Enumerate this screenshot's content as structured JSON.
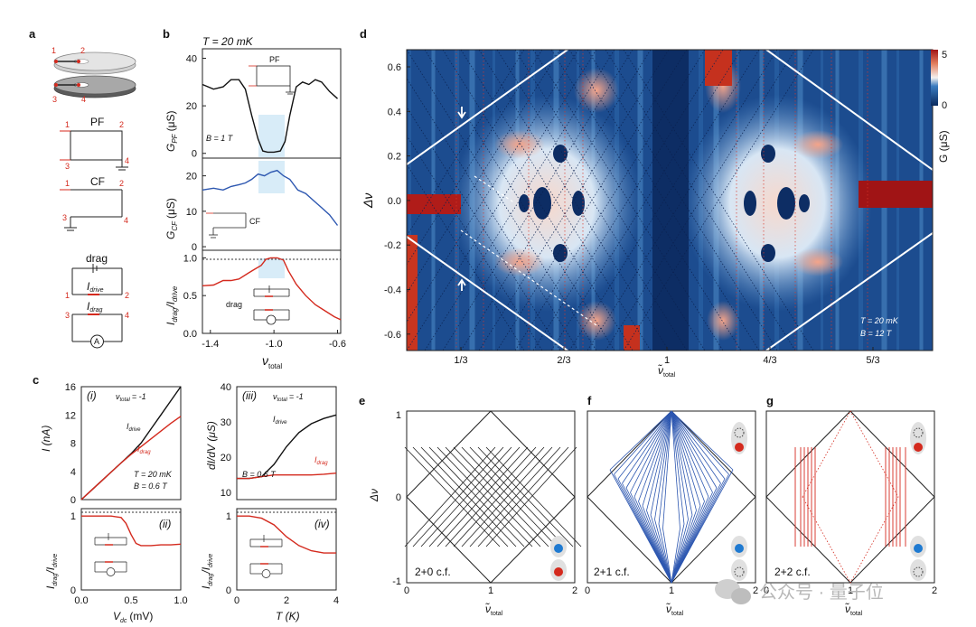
{
  "panels": {
    "a": "a",
    "b": "b",
    "c": "c",
    "d": "d",
    "e": "e",
    "f": "f",
    "g": "g"
  },
  "panel_a": {
    "disk_labels": [
      "1",
      "2",
      "3",
      "4"
    ],
    "pf_label": "PF",
    "cf_label": "CF",
    "drag_label": "drag",
    "i_drive": "I",
    "drive_sub": "drive",
    "i_drag": "I",
    "drag_sub": "drag",
    "ammeter": "A"
  },
  "panel_b": {
    "temp": "T = 20 mK",
    "field": "B = 1 T",
    "pf": "PF",
    "cf": "CF",
    "drag": "drag",
    "ylabel_top": "G",
    "ylabel_top_sub": "PF",
    "ylabel_top_unit": "(μS)",
    "ylabel_mid": "G",
    "ylabel_mid_sub": "CF",
    "ylabel_mid_unit": "(μS)",
    "ylabel_bot": "I",
    "ylabel_bot_sub": "drag",
    "ylabel_bot_2": "/I",
    "ylabel_bot_sub2": "drive",
    "xlabel": "ν",
    "xlabel_sub": "total",
    "yticks_top": [
      "40",
      "20",
      "0"
    ],
    "yticks_mid": [
      "20",
      "10",
      "0"
    ],
    "yticks_bot": [
      "1.0",
      "0.5",
      "0.0"
    ],
    "xticks": [
      "-1.4",
      "-1.0",
      "-0.6"
    ]
  },
  "panel_c": {
    "i": "(i)",
    "ii": "(ii)",
    "iii": "(iii)",
    "iv": "(iv)",
    "nu_i": "ν",
    "nu_sub": "total",
    "nu_val": "= -1",
    "idrive": "I",
    "idrive_sub": "drive",
    "idrag": "I",
    "idrag_sub": "drag",
    "temp": "T = 20 mK",
    "field_i": "B = 0.6 T",
    "field_iii": "B = 0.6 T",
    "ylabel_i": "I (nA)",
    "ylabel_iii": "dI/dV (μS)",
    "ylabel_ratio": "I",
    "xlabel_left": "V",
    "xlabel_left_sub": "dc",
    "xlabel_left_unit": "(mV)",
    "xlabel_right": "T (K)",
    "yticks_i": [
      "16",
      "12",
      "8",
      "4",
      "0"
    ],
    "yticks_iii": [
      "40",
      "30",
      "20",
      "10"
    ],
    "yticks_ratio": [
      "1",
      "0"
    ],
    "xticks_left": [
      "0.0",
      "0.5",
      "1.0"
    ],
    "xticks_right": [
      "0",
      "2",
      "4"
    ]
  },
  "panel_d": {
    "ylabel": "Δν",
    "yticks": [
      "0.6",
      "0.4",
      "0.2",
      "0.0",
      "-0.2",
      "-0.4",
      "-0.6"
    ],
    "xticks": [
      "1/3",
      "2/3",
      "1",
      "4/3",
      "5/3"
    ],
    "xlabel": "ν̃",
    "xlabel_sub": "total",
    "cbar_ticks": [
      "5",
      "0"
    ],
    "cbar_label": "G (μS)",
    "temp": "T = 20 mK",
    "field": "B = 12 T"
  },
  "panel_efg": {
    "ylabel": "Δν",
    "yticks": [
      "1",
      "0",
      "-1"
    ],
    "xticks": [
      "0",
      "1",
      "2"
    ],
    "xlabel": "ν̃",
    "xlabel_sub": "total",
    "label_e": "2+0  c.f.",
    "label_f": "2+1  c.f.",
    "label_g": "2+2  c.f."
  },
  "watermark": "公众号 · 量子位",
  "colors": {
    "red": "#d42a1e",
    "blue": "#2d57b0",
    "black": "#111111"
  },
  "chart_data": [
    {
      "type": "line",
      "title": "",
      "xlabel": "ν total",
      "ylabel": "G PF (μS)",
      "xlim": [
        -1.45,
        -0.58
      ],
      "ylim": [
        -2,
        44
      ],
      "x": [
        -1.45,
        -1.38,
        -1.32,
        -1.27,
        -1.22,
        -1.18,
        -1.14,
        -1.1,
        -1.07,
        -1.04,
        -1.0,
        -0.96,
        -0.93,
        -0.9,
        -0.86,
        -0.82,
        -0.78,
        -0.74,
        -0.7,
        -0.65,
        -0.6
      ],
      "series": [
        {
          "values": [
            29,
            27,
            28,
            31,
            31,
            27,
            16,
            6,
            1,
            0.5,
            0.5,
            1,
            5,
            16,
            28,
            30,
            29,
            31,
            30,
            26,
            23
          ]
        }
      ]
    },
    {
      "type": "line",
      "title": "",
      "xlabel": "ν total",
      "ylabel": "G CF (μS)",
      "xlim": [
        -1.45,
        -0.58
      ],
      "ylim": [
        -1,
        25
      ],
      "x": [
        -1.45,
        -1.38,
        -1.32,
        -1.27,
        -1.22,
        -1.18,
        -1.14,
        -1.1,
        -1.06,
        -1.02,
        -0.98,
        -0.94,
        -0.9,
        -0.85,
        -0.8,
        -0.75,
        -0.7,
        -0.65,
        -0.6
      ],
      "series": [
        {
          "values": [
            16,
            16.5,
            16,
            17,
            17.5,
            18,
            19,
            20.5,
            20,
            21,
            21.5,
            20,
            19,
            16,
            15,
            13,
            11,
            9,
            6
          ]
        }
      ]
    },
    {
      "type": "line",
      "title": "",
      "xlabel": "ν total",
      "ylabel": "I drag / I drive",
      "xlim": [
        -1.45,
        -0.58
      ],
      "ylim": [
        0,
        1.1
      ],
      "x": [
        -1.45,
        -1.38,
        -1.32,
        -1.27,
        -1.22,
        -1.16,
        -1.12,
        -1.08,
        -1.05,
        -1.02,
        -0.98,
        -0.94,
        -0.91,
        -0.86,
        -0.8,
        -0.74,
        -0.68,
        -0.62,
        -0.58
      ],
      "series": [
        {
          "values": [
            0.63,
            0.64,
            0.7,
            0.7,
            0.72,
            0.8,
            0.85,
            0.9,
            0.98,
            1.0,
            1.0,
            0.97,
            0.83,
            0.65,
            0.5,
            0.38,
            0.3,
            0.22,
            0.18
          ]
        }
      ]
    },
    {
      "type": "line",
      "title": "",
      "xlabel": "V dc (mV)",
      "ylabel": "I (nA)",
      "xlim": [
        0,
        1.0
      ],
      "ylim": [
        0,
        16
      ],
      "x": [
        0,
        0.1,
        0.2,
        0.3,
        0.4,
        0.5,
        0.6,
        0.7,
        0.8,
        0.9,
        1.0
      ],
      "series": [
        {
          "name": "I drive",
          "values": [
            0,
            1.3,
            2.6,
            3.9,
            5.2,
            6.5,
            8.0,
            10.0,
            12.0,
            14.0,
            16.0
          ]
        },
        {
          "name": "I drag",
          "values": [
            0,
            1.3,
            2.6,
            3.9,
            5.2,
            6.4,
            7.5,
            8.6,
            9.7,
            10.8,
            11.8
          ]
        }
      ]
    },
    {
      "type": "line",
      "title": "",
      "xlabel": "V dc (mV)",
      "ylabel": "I drag / I drive",
      "xlim": [
        0,
        1.0
      ],
      "ylim": [
        0,
        1.1
      ],
      "x": [
        0,
        0.1,
        0.2,
        0.3,
        0.4,
        0.45,
        0.5,
        0.55,
        0.6,
        0.7,
        0.8,
        0.9,
        1.0
      ],
      "series": [
        {
          "values": [
            1.0,
            1.0,
            1.0,
            1.0,
            0.98,
            0.9,
            0.75,
            0.63,
            0.6,
            0.6,
            0.61,
            0.61,
            0.62
          ]
        }
      ]
    },
    {
      "type": "line",
      "title": "",
      "xlabel": "T (K)",
      "ylabel": "dI/dV (μS)",
      "xlim": [
        0,
        4
      ],
      "ylim": [
        8,
        40
      ],
      "x": [
        0,
        0.5,
        1.0,
        1.5,
        2.0,
        2.5,
        3.0,
        3.5,
        4.0
      ],
      "series": [
        {
          "name": "I drive",
          "values": [
            14,
            14,
            14.5,
            18,
            23,
            27,
            29.5,
            31,
            32
          ]
        },
        {
          "name": "I drag",
          "values": [
            14,
            14,
            14.5,
            15,
            15,
            15,
            15,
            15.2,
            15.5
          ]
        }
      ]
    },
    {
      "type": "line",
      "title": "",
      "xlabel": "T (K)",
      "ylabel": "I drag / I drive",
      "xlim": [
        0,
        4
      ],
      "ylim": [
        0,
        1.1
      ],
      "x": [
        0,
        0.5,
        1.0,
        1.5,
        2.0,
        2.5,
        3.0,
        3.5,
        4.0
      ],
      "series": [
        {
          "values": [
            1.0,
            1.0,
            0.97,
            0.88,
            0.72,
            0.6,
            0.53,
            0.5,
            0.5
          ]
        }
      ]
    },
    {
      "type": "heatmap",
      "title": "",
      "xlabel": "ν̃ total",
      "ylabel": "Δν",
      "xlim": [
        0.1,
        1.9
      ],
      "ylim": [
        -0.68,
        0.68
      ],
      "colorbar": {
        "label": "G (μS)",
        "range": [
          0,
          5
        ]
      }
    }
  ]
}
